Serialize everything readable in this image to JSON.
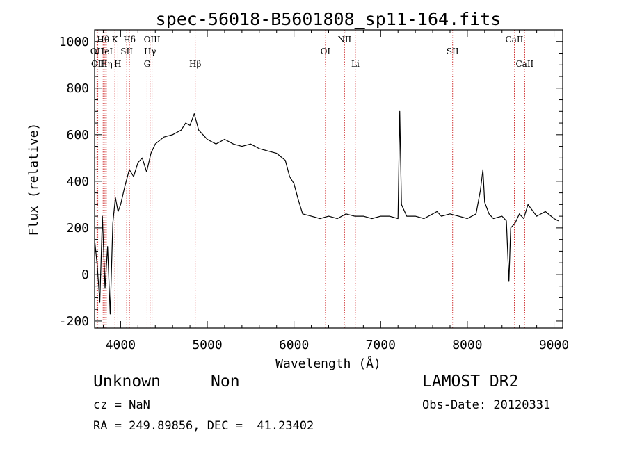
{
  "chart_data": {
    "type": "line",
    "title": "spec-56018-B5601808_sp11-164.fits",
    "xlabel": "Wavelength (Å)",
    "ylabel": "Flux (relative)",
    "xlim": [
      3700,
      9100
    ],
    "ylim": [
      -230,
      1050
    ],
    "xticks": [
      4000,
      5000,
      6000,
      7000,
      8000,
      9000
    ],
    "yticks": [
      -200,
      0,
      200,
      400,
      600,
      800,
      1000
    ],
    "grid": false,
    "line_color": "#000000",
    "marker_color": "#cc2222",
    "spectrum": {
      "x": [
        3700,
        3730,
        3760,
        3790,
        3820,
        3850,
        3880,
        3910,
        3940,
        3970,
        4000,
        4050,
        4100,
        4150,
        4200,
        4250,
        4300,
        4350,
        4400,
        4500,
        4600,
        4700,
        4750,
        4800,
        4850,
        4900,
        4950,
        5000,
        5100,
        5200,
        5300,
        5400,
        5500,
        5600,
        5700,
        5800,
        5900,
        5950,
        6000,
        6050,
        6100,
        6200,
        6300,
        6400,
        6500,
        6600,
        6700,
        6800,
        6900,
        7000,
        7100,
        7200,
        7220,
        7240,
        7300,
        7400,
        7500,
        7600,
        7650,
        7700,
        7800,
        7900,
        8000,
        8100,
        8150,
        8180,
        8200,
        8250,
        8300,
        8400,
        8450,
        8480,
        8500,
        8550,
        8600,
        8650,
        8700,
        8800,
        8900,
        9000,
        9050
      ],
      "y": [
        150,
        40,
        -120,
        250,
        -60,
        120,
        -170,
        220,
        330,
        270,
        300,
        380,
        450,
        420,
        480,
        500,
        440,
        520,
        560,
        590,
        600,
        620,
        650,
        640,
        690,
        620,
        600,
        580,
        560,
        580,
        560,
        550,
        560,
        540,
        530,
        520,
        490,
        420,
        390,
        320,
        260,
        250,
        240,
        250,
        240,
        260,
        250,
        250,
        240,
        250,
        250,
        240,
        700,
        300,
        250,
        250,
        240,
        260,
        270,
        250,
        260,
        250,
        240,
        260,
        360,
        450,
        310,
        260,
        240,
        250,
        230,
        -30,
        200,
        220,
        260,
        240,
        300,
        250,
        270,
        240,
        230
      ]
    },
    "lines": [
      {
        "label": "Hθ",
        "x": 3798,
        "row": 1
      },
      {
        "label": "OII",
        "x": 3727,
        "row": 2
      },
      {
        "label": "OII",
        "x": 3737,
        "row": 3
      },
      {
        "label": "HeI",
        "x": 3820,
        "row": 2
      },
      {
        "label": "Hη",
        "x": 3835,
        "row": 3
      },
      {
        "label": "K",
        "x": 3934,
        "row": 1
      },
      {
        "label": "H",
        "x": 3968,
        "row": 3
      },
      {
        "label": "SII",
        "x": 4070,
        "row": 2
      },
      {
        "label": "Hδ",
        "x": 4102,
        "row": 1
      },
      {
        "label": "OIII",
        "x": 4363,
        "row": 1
      },
      {
        "label": "Hγ",
        "x": 4340,
        "row": 2
      },
      {
        "label": "G",
        "x": 4305,
        "row": 3
      },
      {
        "label": "Hβ",
        "x": 4861,
        "row": 3
      },
      {
        "label": "OI",
        "x": 6363,
        "row": 2
      },
      {
        "label": "NII",
        "x": 6583,
        "row": 1
      },
      {
        "label": "Li",
        "x": 6708,
        "row": 3
      },
      {
        "label": "SII",
        "x": 7830,
        "row": 2
      },
      {
        "label": "CaII",
        "x": 8542,
        "row": 1
      },
      {
        "label": "CaII",
        "x": 8662,
        "row": 3
      }
    ]
  },
  "info": {
    "object_class": "Unknown",
    "object_subclass": "Non",
    "survey": "LAMOST DR2",
    "redshift": "cz = NaN",
    "obs_date": "Obs-Date: 20120331",
    "coords": "RA = 249.89856, DEC =  41.23402"
  }
}
